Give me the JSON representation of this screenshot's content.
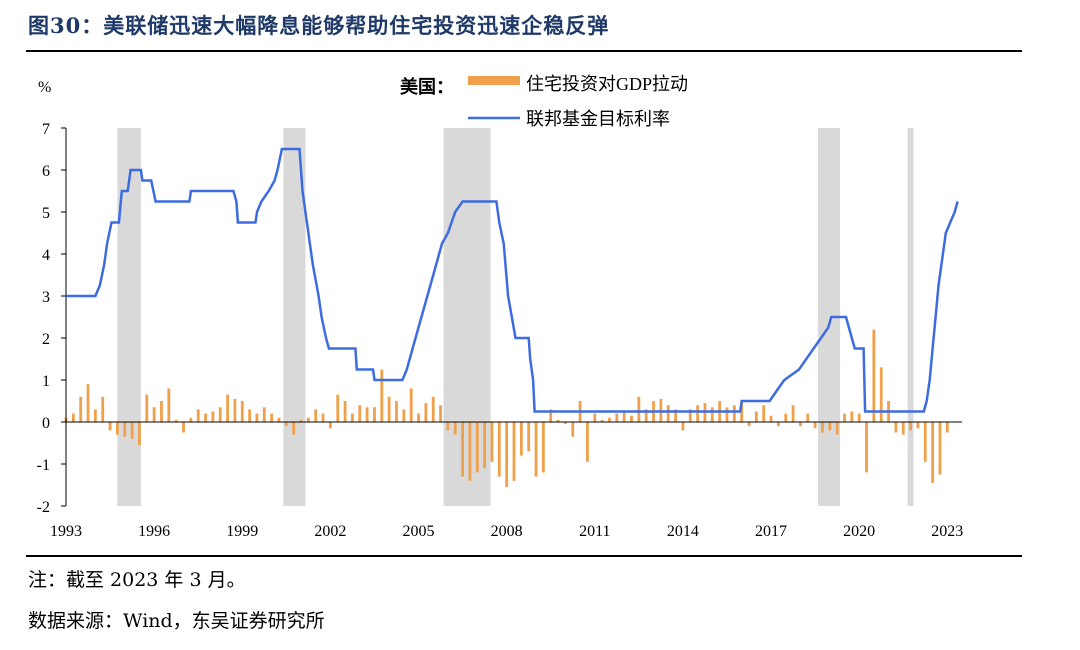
{
  "figure": {
    "title": "图30：美联储迅速大幅降息能够帮助住宅投资迅速企稳反弹",
    "note": "注：截至 2023 年 3 月。",
    "source": "数据来源：Wind，东吴证券研究所"
  },
  "colors": {
    "bar": "#f0a04b",
    "line": "#3d6be0",
    "shade": "#d9d9d9",
    "title": "#1f3a68"
  },
  "chart_data": {
    "type": "bar+line",
    "ylabel": "%",
    "ylim": [
      -2,
      7
    ],
    "yticks": [
      -2,
      -1,
      0,
      1,
      2,
      3,
      4,
      5,
      6,
      7
    ],
    "xlim": [
      1993,
      2023.5
    ],
    "xticks": [
      1993,
      1996,
      1999,
      2002,
      2005,
      2008,
      2011,
      2014,
      2017,
      2020,
      2023
    ],
    "legend_title": "美国：",
    "legend_position": "top-center",
    "shaded_periods": [
      [
        1994.75,
        1995.55
      ],
      [
        2000.4,
        2001.15
      ],
      [
        2005.85,
        2007.45
      ],
      [
        2018.6,
        2019.35
      ],
      [
        2021.65,
        2021.85
      ]
    ],
    "series": [
      {
        "name": "住宅投资对GDP拉动",
        "type": "bar",
        "points": [
          [
            1993.0,
            0.1
          ],
          [
            1993.25,
            0.2
          ],
          [
            1993.5,
            0.6
          ],
          [
            1993.75,
            0.9
          ],
          [
            1994.0,
            0.3
          ],
          [
            1994.25,
            0.6
          ],
          [
            1994.5,
            -0.2
          ],
          [
            1994.75,
            -0.3
          ],
          [
            1995.0,
            -0.35
          ],
          [
            1995.25,
            -0.4
          ],
          [
            1995.5,
            -0.55
          ],
          [
            1995.75,
            0.65
          ],
          [
            1996.0,
            0.35
          ],
          [
            1996.25,
            0.5
          ],
          [
            1996.5,
            0.8
          ],
          [
            1996.75,
            0.05
          ],
          [
            1997.0,
            -0.25
          ],
          [
            1997.25,
            0.1
          ],
          [
            1997.5,
            0.3
          ],
          [
            1997.75,
            0.2
          ],
          [
            1998.0,
            0.25
          ],
          [
            1998.25,
            0.35
          ],
          [
            1998.5,
            0.65
          ],
          [
            1998.75,
            0.55
          ],
          [
            1999.0,
            0.5
          ],
          [
            1999.25,
            0.3
          ],
          [
            1999.5,
            0.2
          ],
          [
            1999.75,
            0.35
          ],
          [
            2000.0,
            0.2
          ],
          [
            2000.25,
            0.1
          ],
          [
            2000.5,
            -0.1
          ],
          [
            2000.75,
            -0.3
          ],
          [
            2001.0,
            0.05
          ],
          [
            2001.25,
            0.1
          ],
          [
            2001.5,
            0.3
          ],
          [
            2001.75,
            0.2
          ],
          [
            2002.0,
            -0.15
          ],
          [
            2002.25,
            0.65
          ],
          [
            2002.5,
            0.5
          ],
          [
            2002.75,
            0.2
          ],
          [
            2003.0,
            0.4
          ],
          [
            2003.25,
            0.35
          ],
          [
            2003.5,
            0.35
          ],
          [
            2003.75,
            1.25
          ],
          [
            2004.0,
            0.6
          ],
          [
            2004.25,
            0.5
          ],
          [
            2004.5,
            0.3
          ],
          [
            2004.75,
            0.8
          ],
          [
            2005.0,
            0.2
          ],
          [
            2005.25,
            0.45
          ],
          [
            2005.5,
            0.6
          ],
          [
            2005.75,
            0.4
          ],
          [
            2006.0,
            -0.2
          ],
          [
            2006.25,
            -0.3
          ],
          [
            2006.5,
            -1.3
          ],
          [
            2006.75,
            -1.4
          ],
          [
            2007.0,
            -1.2
          ],
          [
            2007.25,
            -1.1
          ],
          [
            2007.5,
            -0.95
          ],
          [
            2007.75,
            -1.3
          ],
          [
            2008.0,
            -1.55
          ],
          [
            2008.25,
            -1.4
          ],
          [
            2008.5,
            -0.8
          ],
          [
            2008.75,
            -0.7
          ],
          [
            2009.0,
            -1.3
          ],
          [
            2009.25,
            -1.2
          ],
          [
            2009.5,
            0.3
          ],
          [
            2009.75,
            0.05
          ],
          [
            2010.0,
            -0.05
          ],
          [
            2010.25,
            -0.35
          ],
          [
            2010.5,
            0.5
          ],
          [
            2010.75,
            -0.95
          ],
          [
            2011.0,
            0.2
          ],
          [
            2011.25,
            0.05
          ],
          [
            2011.5,
            0.1
          ],
          [
            2011.75,
            0.2
          ],
          [
            2012.0,
            0.25
          ],
          [
            2012.25,
            0.15
          ],
          [
            2012.5,
            0.6
          ],
          [
            2012.75,
            0.3
          ],
          [
            2013.0,
            0.5
          ],
          [
            2013.25,
            0.55
          ],
          [
            2013.5,
            0.4
          ],
          [
            2013.75,
            0.3
          ],
          [
            2014.0,
            -0.2
          ],
          [
            2014.25,
            0.3
          ],
          [
            2014.5,
            0.4
          ],
          [
            2014.75,
            0.45
          ],
          [
            2015.0,
            0.35
          ],
          [
            2015.25,
            0.5
          ],
          [
            2015.5,
            0.35
          ],
          [
            2015.75,
            0.4
          ],
          [
            2016.0,
            0.5
          ],
          [
            2016.25,
            -0.1
          ],
          [
            2016.5,
            0.25
          ],
          [
            2016.75,
            0.4
          ],
          [
            2017.0,
            0.15
          ],
          [
            2017.25,
            -0.1
          ],
          [
            2017.5,
            0.2
          ],
          [
            2017.75,
            0.4
          ],
          [
            2018.0,
            -0.1
          ],
          [
            2018.25,
            0.2
          ],
          [
            2018.5,
            -0.15
          ],
          [
            2018.75,
            -0.25
          ],
          [
            2019.0,
            -0.2
          ],
          [
            2019.25,
            -0.3
          ],
          [
            2019.5,
            0.2
          ],
          [
            2019.75,
            0.25
          ],
          [
            2020.0,
            0.2
          ],
          [
            2020.25,
            -1.2
          ],
          [
            2020.5,
            2.2
          ],
          [
            2020.75,
            1.3
          ],
          [
            2021.0,
            0.5
          ],
          [
            2021.25,
            -0.25
          ],
          [
            2021.5,
            -0.3
          ],
          [
            2021.75,
            -0.2
          ],
          [
            2022.0,
            -0.15
          ],
          [
            2022.25,
            -0.95
          ],
          [
            2022.5,
            -1.45
          ],
          [
            2022.75,
            -1.25
          ],
          [
            2023.0,
            -0.25
          ]
        ]
      },
      {
        "name": "联邦基金目标利率",
        "type": "line",
        "points": [
          [
            1993.0,
            3.0
          ],
          [
            1994.0,
            3.0
          ],
          [
            1994.15,
            3.25
          ],
          [
            1994.3,
            3.75
          ],
          [
            1994.4,
            4.25
          ],
          [
            1994.55,
            4.75
          ],
          [
            1994.8,
            4.75
          ],
          [
            1994.9,
            5.5
          ],
          [
            1995.1,
            5.5
          ],
          [
            1995.2,
            6.0
          ],
          [
            1995.55,
            6.0
          ],
          [
            1995.6,
            5.75
          ],
          [
            1995.9,
            5.75
          ],
          [
            1996.05,
            5.25
          ],
          [
            1997.2,
            5.25
          ],
          [
            1997.25,
            5.5
          ],
          [
            1998.7,
            5.5
          ],
          [
            1998.8,
            5.25
          ],
          [
            1998.85,
            4.75
          ],
          [
            1999.45,
            4.75
          ],
          [
            1999.5,
            5.0
          ],
          [
            1999.65,
            5.25
          ],
          [
            1999.9,
            5.5
          ],
          [
            2000.1,
            5.75
          ],
          [
            2000.2,
            6.0
          ],
          [
            2000.35,
            6.5
          ],
          [
            2000.95,
            6.5
          ],
          [
            2001.05,
            5.5
          ],
          [
            2001.25,
            4.5
          ],
          [
            2001.4,
            3.75
          ],
          [
            2001.6,
            3.0
          ],
          [
            2001.7,
            2.5
          ],
          [
            2001.85,
            2.0
          ],
          [
            2001.95,
            1.75
          ],
          [
            2002.85,
            1.75
          ],
          [
            2002.9,
            1.25
          ],
          [
            2003.45,
            1.25
          ],
          [
            2003.5,
            1.0
          ],
          [
            2004.45,
            1.0
          ],
          [
            2004.6,
            1.25
          ],
          [
            2004.8,
            1.75
          ],
          [
            2005.0,
            2.25
          ],
          [
            2005.2,
            2.75
          ],
          [
            2005.4,
            3.25
          ],
          [
            2005.6,
            3.75
          ],
          [
            2005.8,
            4.25
          ],
          [
            2006.0,
            4.5
          ],
          [
            2006.25,
            5.0
          ],
          [
            2006.5,
            5.25
          ],
          [
            2007.65,
            5.25
          ],
          [
            2007.75,
            4.75
          ],
          [
            2007.9,
            4.25
          ],
          [
            2008.05,
            3.0
          ],
          [
            2008.3,
            2.0
          ],
          [
            2008.75,
            2.0
          ],
          [
            2008.8,
            1.5
          ],
          [
            2008.9,
            1.0
          ],
          [
            2008.95,
            0.25
          ],
          [
            2015.95,
            0.25
          ],
          [
            2016.0,
            0.5
          ],
          [
            2016.95,
            0.5
          ],
          [
            2017.2,
            0.75
          ],
          [
            2017.45,
            1.0
          ],
          [
            2017.95,
            1.25
          ],
          [
            2018.2,
            1.5
          ],
          [
            2018.45,
            1.75
          ],
          [
            2018.7,
            2.0
          ],
          [
            2018.95,
            2.25
          ],
          [
            2019.05,
            2.5
          ],
          [
            2019.55,
            2.5
          ],
          [
            2019.65,
            2.25
          ],
          [
            2019.75,
            2.0
          ],
          [
            2019.85,
            1.75
          ],
          [
            2020.15,
            1.75
          ],
          [
            2020.2,
            0.25
          ],
          [
            2022.2,
            0.25
          ],
          [
            2022.3,
            0.5
          ],
          [
            2022.4,
            1.0
          ],
          [
            2022.5,
            1.75
          ],
          [
            2022.6,
            2.5
          ],
          [
            2022.7,
            3.25
          ],
          [
            2022.85,
            4.0
          ],
          [
            2022.95,
            4.5
          ],
          [
            2023.1,
            4.75
          ],
          [
            2023.25,
            5.0
          ],
          [
            2023.35,
            5.25
          ]
        ]
      }
    ]
  }
}
